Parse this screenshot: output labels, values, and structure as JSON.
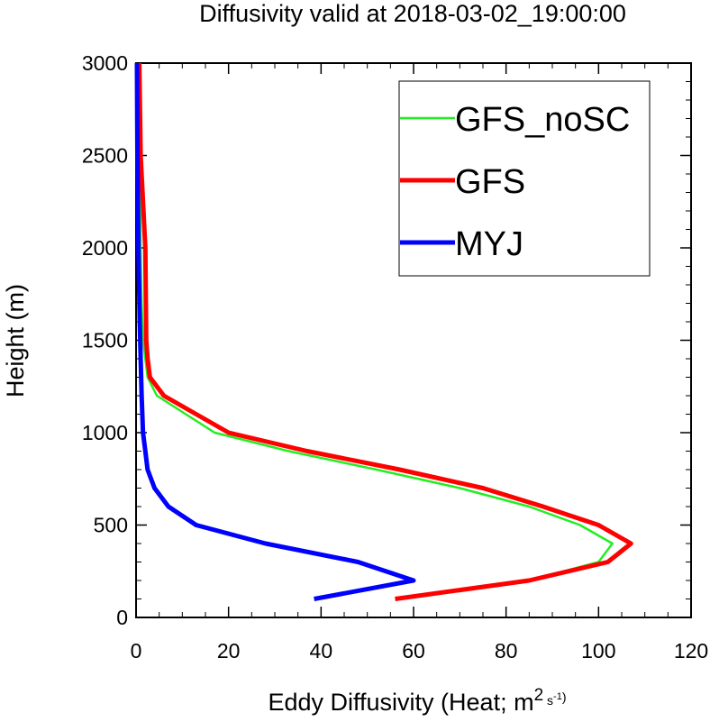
{
  "chart_data": {
    "type": "line",
    "title": "Diffusivity valid at 2018-03-02_19:00:00",
    "xlabel_main": "Eddy Diffusivity (Heat; m",
    "xlabel_unit_sup1": "2",
    "xlabel_unit_s": " s",
    "xlabel_unit_sup2": "-1",
    "xlabel_close": ")",
    "ylabel": "Height (m)",
    "xlim": [
      0,
      120
    ],
    "ylim": [
      0,
      3000
    ],
    "x_ticks": [
      0,
      20,
      40,
      60,
      80,
      100,
      120
    ],
    "x_tick_labels": [
      "0",
      "20",
      "40",
      "60",
      "80",
      "100",
      "120"
    ],
    "y_ticks": [
      0,
      500,
      1000,
      1500,
      2000,
      2500,
      3000
    ],
    "y_tick_labels": [
      "0",
      "500",
      "1000",
      "1500",
      "2000",
      "2500",
      "3000"
    ],
    "grid": false,
    "legend_position": "top-right",
    "series": [
      {
        "name": "GFS_noSC",
        "color": "#22ee22",
        "width": "thin",
        "points": [
          [
            56.5,
            100
          ],
          [
            85,
            200
          ],
          [
            100,
            300
          ],
          [
            103,
            400
          ],
          [
            96,
            500
          ],
          [
            85,
            600
          ],
          [
            70,
            700
          ],
          [
            52,
            800
          ],
          [
            33,
            900
          ],
          [
            17,
            1000
          ],
          [
            4.5,
            1200
          ],
          [
            2.5,
            1300
          ],
          [
            2,
            1400
          ],
          [
            1.5,
            1500
          ],
          [
            1.2,
            1700
          ],
          [
            1,
            2000
          ],
          [
            0.8,
            2500
          ],
          [
            0.6,
            3000
          ]
        ]
      },
      {
        "name": "GFS",
        "color": "#ff0000",
        "width": "thick",
        "points": [
          [
            56,
            100
          ],
          [
            85,
            200
          ],
          [
            102,
            300
          ],
          [
            107,
            400
          ],
          [
            100,
            500
          ],
          [
            88,
            600
          ],
          [
            75,
            700
          ],
          [
            57,
            800
          ],
          [
            37,
            900
          ],
          [
            20,
            1000
          ],
          [
            6,
            1200
          ],
          [
            3,
            1300
          ],
          [
            2.5,
            1400
          ],
          [
            2.2,
            1500
          ],
          [
            2,
            2000
          ],
          [
            1,
            2500
          ],
          [
            0.7,
            3000
          ]
        ]
      },
      {
        "name": "MYJ",
        "color": "#0000ff",
        "width": "thick",
        "points": [
          [
            38.5,
            100
          ],
          [
            60,
            200
          ],
          [
            48,
            300
          ],
          [
            28,
            400
          ],
          [
            13,
            500
          ],
          [
            7,
            600
          ],
          [
            4,
            700
          ],
          [
            2.5,
            800
          ],
          [
            2,
            900
          ],
          [
            1.5,
            1000
          ],
          [
            1.2,
            1200
          ],
          [
            1,
            1400
          ],
          [
            0.8,
            1600
          ],
          [
            0.5,
            2000
          ],
          [
            0.3,
            2500
          ],
          [
            0.2,
            3000
          ]
        ]
      }
    ]
  }
}
